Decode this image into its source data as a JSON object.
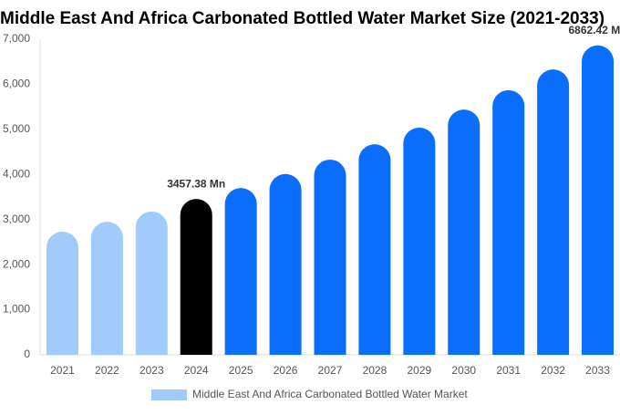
{
  "chart_data": {
    "type": "bar",
    "title": "Middle East And Africa Carbonated Bottled Water Market Size (2021-2033)",
    "categories": [
      "2021",
      "2022",
      "2023",
      "2024",
      "2025",
      "2026",
      "2027",
      "2028",
      "2029",
      "2030",
      "2031",
      "2032",
      "2033"
    ],
    "series": [
      {
        "name": "Middle East And Africa Carbonated Bottled Water Market",
        "color": "#a0cbfb",
        "colors": [
          "#a0cbfb",
          "#a0cbfb",
          "#a0cbfb",
          "#000000",
          "#0a6efa",
          "#0a6efa",
          "#0a6efa",
          "#0a6efa",
          "#0a6efa",
          "#0a6efa",
          "#0a6efa",
          "#0a6efa",
          "#0a6efa"
        ],
        "values": [
          2730,
          2950,
          3180,
          3457.38,
          3700,
          4010,
          4330,
          4670,
          5040,
          5440,
          5870,
          6330,
          6862.42
        ],
        "value_labels": [
          null,
          null,
          null,
          "3457.38 Mn",
          null,
          null,
          null,
          null,
          null,
          null,
          null,
          null,
          "6862.42 Mn"
        ]
      }
    ],
    "ylim": [
      0,
      7000
    ],
    "yticks": [
      0,
      {
        "value": 1000,
        "label": "1,000"
      },
      {
        "value": 2000,
        "label": "2,000"
      },
      {
        "value": 3000,
        "label": "3,000"
      },
      {
        "value": 4000,
        "label": "4,000"
      },
      {
        "value": 5000,
        "label": "5,000"
      },
      {
        "value": 6000,
        "label": "6,000"
      },
      {
        "value": 7000,
        "label": "7,000"
      }
    ],
    "grid": false
  }
}
